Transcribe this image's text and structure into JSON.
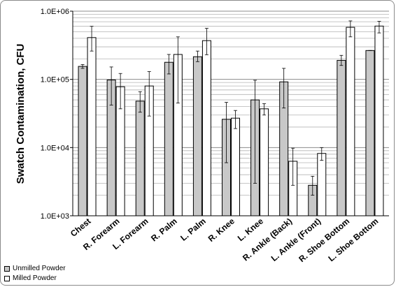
{
  "chart_data": {
    "type": "bar",
    "ylabel": "Swatch Contamination, CFU",
    "yscale": "log",
    "ylim": [
      1000,
      1000000
    ],
    "yticks": [
      "1.0E+03",
      "1.0E+04",
      "1.0E+05",
      "1.0E+06"
    ],
    "grid": true,
    "legend_position": "bottom-left",
    "categories": [
      "Chest",
      "R. Forearm",
      "L. Forearm",
      "R. Palm",
      "L. Palm",
      "R. Knee",
      "L. Knee",
      "R. Ankle (Back)",
      "L. Ankle (Front)",
      "R. Shoe Bottom",
      "L. Shoe Bottom"
    ],
    "series": [
      {
        "name": "Unmilled Powder",
        "color": "#c8c8c8",
        "values": [
          155000,
          98000,
          48000,
          178000,
          215000,
          26000,
          50000,
          92000,
          2800,
          190000,
          265000
        ],
        "error_low": [
          145000,
          42000,
          33000,
          120000,
          182000,
          6000,
          3000,
          38000,
          2000,
          160000,
          265000
        ],
        "error_high": [
          165000,
          152000,
          66000,
          232000,
          260000,
          46000,
          97000,
          145000,
          3800,
          225000,
          265000
        ]
      },
      {
        "name": "Milled Powder",
        "color": "#ffffff",
        "values": [
          410000,
          78000,
          80000,
          232000,
          370000,
          27000,
          37000,
          6300,
          8200,
          580000,
          605000
        ],
        "error_low": [
          260000,
          37000,
          29000,
          45000,
          230000,
          19000,
          30000,
          2800,
          6500,
          420000,
          480000
        ],
        "error_high": [
          600000,
          122000,
          130000,
          420000,
          560000,
          35000,
          44000,
          9800,
          10000,
          720000,
          710000
        ]
      }
    ]
  }
}
